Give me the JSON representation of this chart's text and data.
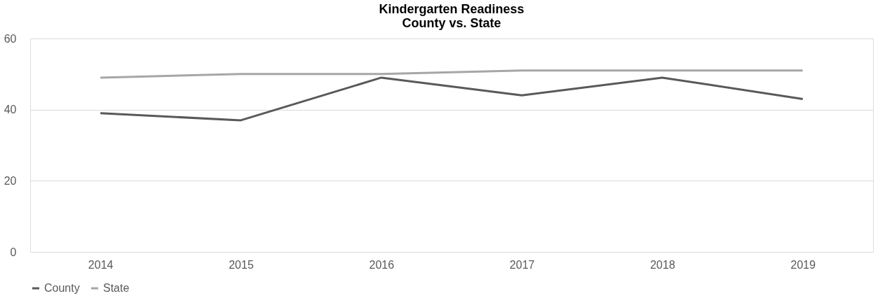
{
  "chart_data": {
    "type": "line",
    "title": "Kindergarten Readiness\nCounty vs. State",
    "categories": [
      "2014",
      "2015",
      "2016",
      "2017",
      "2018",
      "2019"
    ],
    "series": [
      {
        "name": "County",
        "color": "#595959",
        "values": [
          39,
          37,
          49,
          44,
          49,
          43
        ]
      },
      {
        "name": "State",
        "color": "#a6a6a6",
        "values": [
          49,
          50,
          50,
          51,
          51,
          51
        ]
      }
    ],
    "ylim": [
      0,
      60
    ],
    "yticks": [
      0,
      20,
      40,
      60
    ],
    "grid": "y",
    "legend": "bottom",
    "marker": "none",
    "line_style": "solid"
  }
}
